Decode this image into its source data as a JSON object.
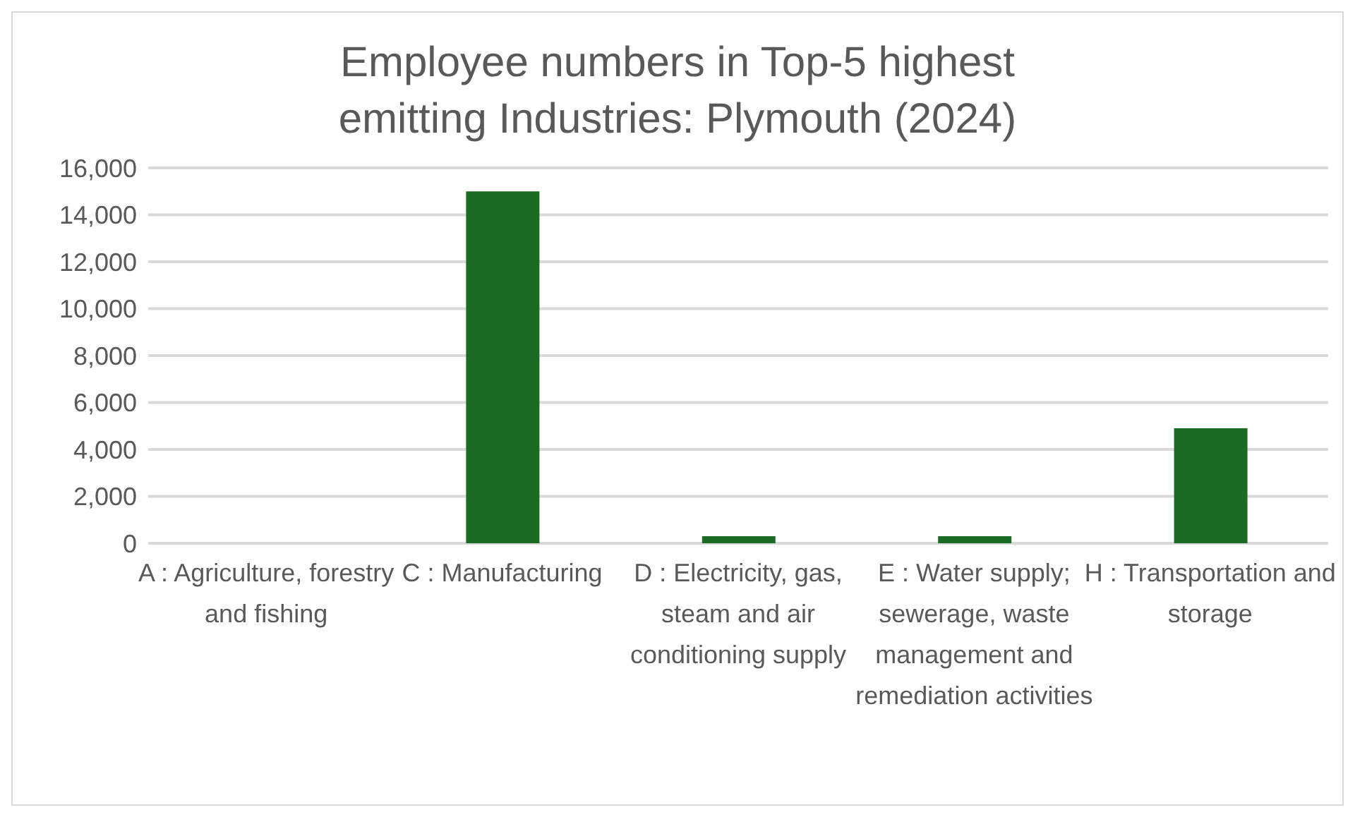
{
  "chart_data": {
    "type": "bar",
    "title": "Employee numbers in Top-5 highest emitting Industries: Plymouth (2024)",
    "categories": [
      "A : Agriculture, forestry and fishing",
      "C : Manufacturing",
      "D : Electricity, gas, steam and air conditioning supply",
      "E : Water supply; sewerage, waste management and remediation activities",
      "H : Transportation and storage"
    ],
    "values": [
      0,
      15000,
      300,
      300,
      4900
    ],
    "color": "#1b6b24",
    "ylim": [
      0,
      16000
    ],
    "yticks": [
      {
        "value": 0,
        "label": "0"
      },
      {
        "value": 2000,
        "label": "2,000"
      },
      {
        "value": 4000,
        "label": "4,000"
      },
      {
        "value": 6000,
        "label": "6,000"
      },
      {
        "value": 8000,
        "label": "8,000"
      },
      {
        "value": 10000,
        "label": "10,000"
      },
      {
        "value": 12000,
        "label": "12,000"
      },
      {
        "value": 14000,
        "label": "14,000"
      },
      {
        "value": 16000,
        "label": "16,000"
      }
    ],
    "grid": "y",
    "legend": false
  }
}
